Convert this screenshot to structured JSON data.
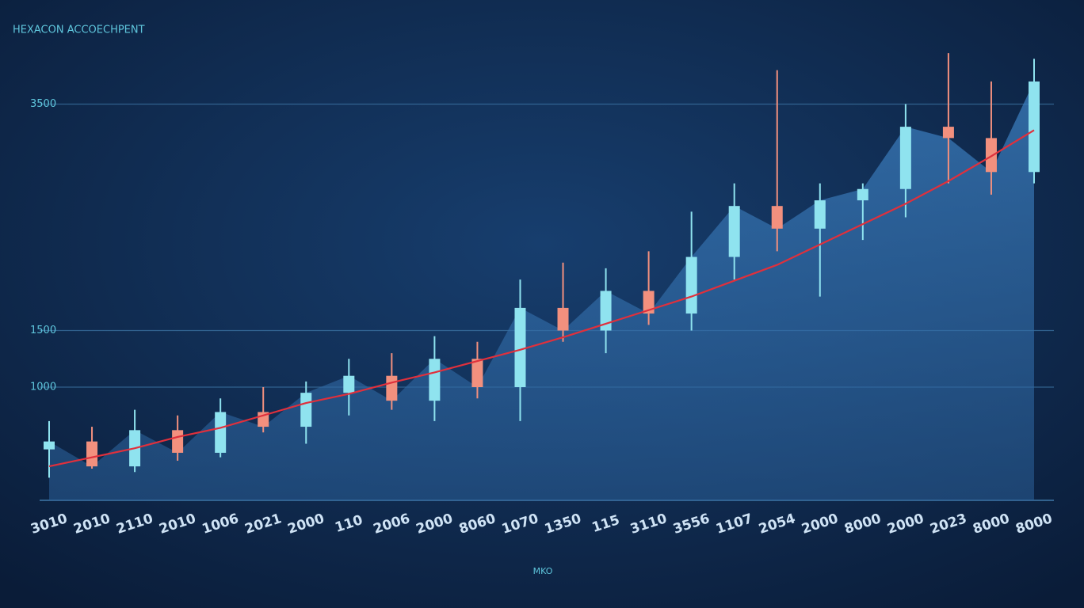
{
  "chart_data": {
    "type": "candlestick",
    "title": "HEXACON ACCOECHPENT",
    "x_label": "MKO",
    "categories": [
      "3010",
      "2010",
      "2110",
      "2010",
      "1006",
      "2021",
      "2000",
      "110",
      "2006",
      "2000",
      "8060",
      "1070",
      "1350",
      "115",
      "3110",
      "3556",
      "1107",
      "2054",
      "2000",
      "8000",
      "2000",
      "2023",
      "8000",
      "8000"
    ],
    "open": [
      450,
      520,
      300,
      620,
      420,
      780,
      650,
      950,
      1100,
      880,
      1250,
      1000,
      1700,
      1500,
      1850,
      1650,
      2150,
      2600,
      2400,
      2650,
      2750,
      3300,
      3200,
      2900
    ],
    "high": [
      700,
      650,
      800,
      750,
      900,
      1000,
      1050,
      1250,
      1300,
      1450,
      1400,
      1950,
      2100,
      2050,
      2200,
      2550,
      2800,
      3800,
      2800,
      2800,
      3500,
      3950,
      3700,
      3900
    ],
    "low": [
      200,
      280,
      250,
      350,
      380,
      600,
      500,
      750,
      800,
      700,
      900,
      700,
      1400,
      1300,
      1550,
      1500,
      1950,
      2200,
      1800,
      2300,
      2500,
      2800,
      2700,
      2800
    ],
    "close": [
      520,
      300,
      620,
      420,
      780,
      650,
      950,
      1100,
      880,
      1250,
      1000,
      1700,
      1500,
      1850,
      1650,
      2150,
      2600,
      2400,
      2650,
      2750,
      3300,
      3200,
      2900,
      3700
    ],
    "trend": [
      300,
      380,
      460,
      560,
      640,
      750,
      860,
      940,
      1040,
      1130,
      1230,
      1330,
      1440,
      1560,
      1680,
      1800,
      1940,
      2080,
      2260,
      2440,
      2620,
      2820,
      3040,
      3270
    ],
    "up_color": "#8fe3ef",
    "down_color": "#f2907e",
    "trend_color": "#e0303c",
    "ylim": [
      0,
      4000
    ],
    "yticks": [
      3500,
      1500,
      1000
    ],
    "grid": true
  }
}
